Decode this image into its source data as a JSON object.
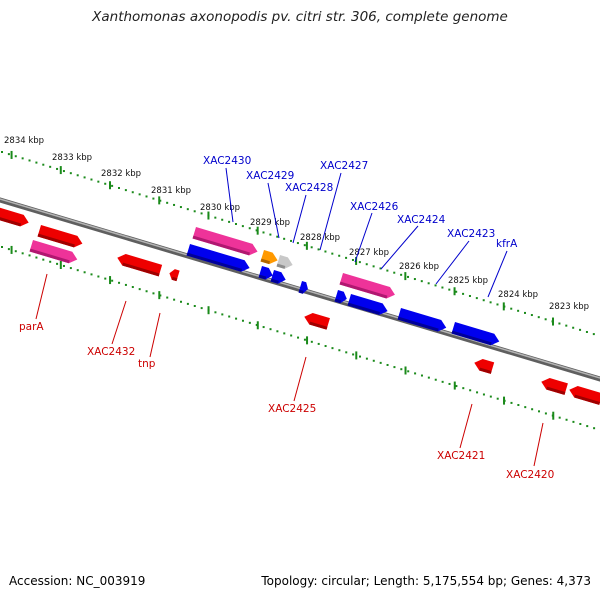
{
  "title": "Xanthomonas axonopodis pv. citri str. 306, complete genome",
  "footer": {
    "accession": "Accession: NC_003919",
    "summary": "Topology: circular; Length: 5,175,554 bp; Genes: 4,373"
  },
  "colors": {
    "forward_label": "#0000cc",
    "reverse_label": "#cc0000",
    "scale_green": "#1a8a1a",
    "backbone": "#7a7a7a"
  },
  "scale_labels": [
    "2834 kbp",
    "2833 kbp",
    "2832 kbp",
    "2831 kbp",
    "2830 kbp",
    "2829 kbp",
    "2828 kbp",
    "2827 kbp",
    "2826 kbp",
    "2825 kbp",
    "2824 kbp",
    "2823 kbp"
  ],
  "forward_gene_labels": [
    "XAC2430",
    "XAC2429",
    "XAC2428",
    "XAC2427",
    "XAC2426",
    "XAC2424",
    "XAC2423",
    "kfrA"
  ],
  "reverse_gene_labels": [
    "parA",
    "XAC2432",
    "tnp",
    "XAC2425",
    "XAC2421",
    "XAC2420"
  ]
}
